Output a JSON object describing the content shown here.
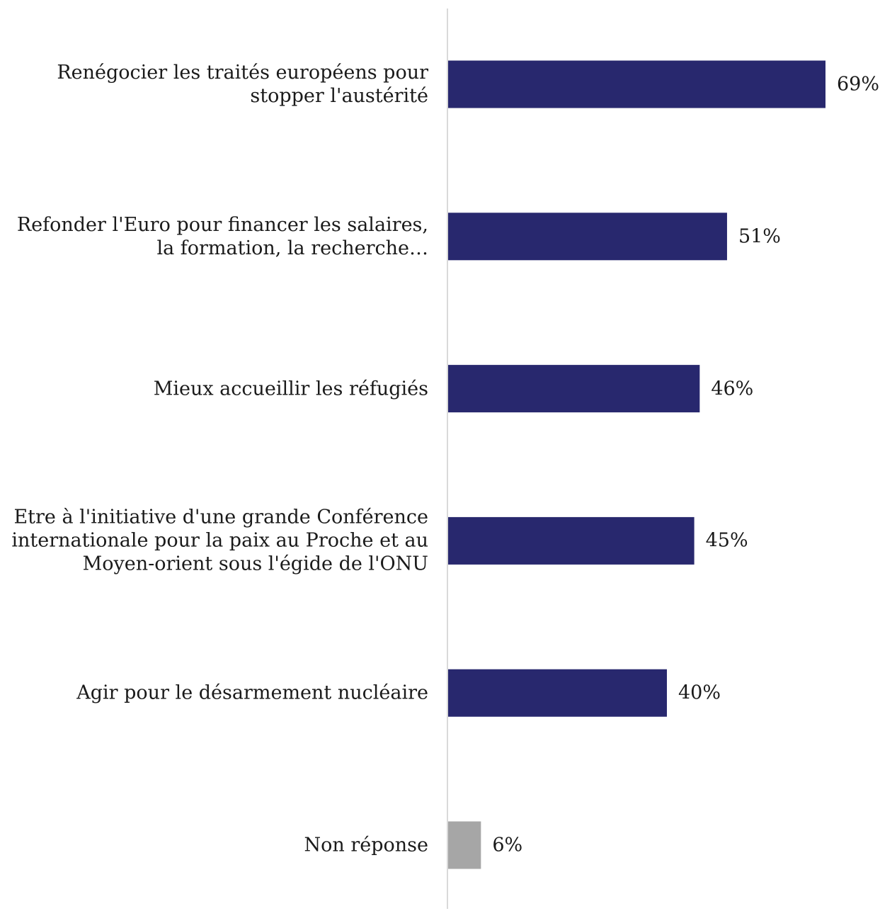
{
  "chart_data": {
    "type": "bar",
    "orientation": "horizontal",
    "categories": [
      "Renégocier les traités européens pour stopper l'austérité",
      "Refonder l'Euro pour financer les salaires, la formation, la recherche…",
      "Mieux accueillir les réfugiés",
      "Etre à l'initiative d'une grande Conférence internationale pour la paix au Proche et au Moyen-orient sous l'égide de l'ONU",
      "Agir pour le désarmement nucléaire",
      "Non réponse"
    ],
    "values": [
      69,
      51,
      46,
      45,
      40,
      6
    ],
    "value_labels": [
      "69%",
      "51%",
      "46%",
      "45%",
      "40%",
      "6%"
    ],
    "colors": [
      "#28286e",
      "#28286e",
      "#28286e",
      "#28286e",
      "#28286e",
      "#a6a6a6"
    ],
    "xlim": [
      0,
      69
    ],
    "grid": false,
    "legend": "none"
  }
}
